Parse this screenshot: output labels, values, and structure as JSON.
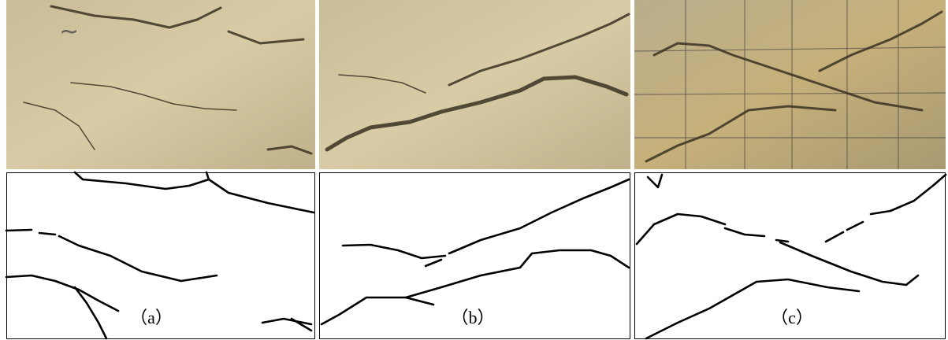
{
  "panels": [
    {
      "label": "（a）"
    },
    {
      "label": "（b）"
    },
    {
      "label": "（c）"
    }
  ]
}
